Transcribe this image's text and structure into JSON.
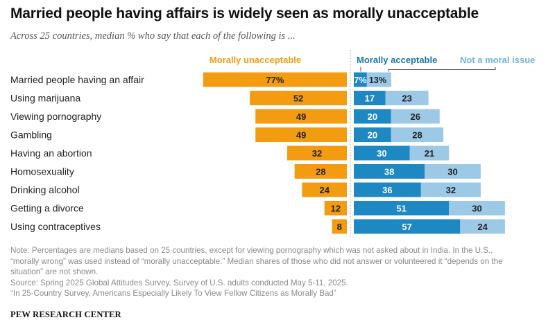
{
  "title": "Married people having affairs is widely seen as morally unacceptable",
  "subtitle": "Across 25 countries, median % who say that each of the following is ...",
  "colors": {
    "unacceptable": "#F39C12",
    "acceptable": "#1E88C2",
    "not_moral": "#9CC9E6"
  },
  "chart_data": {
    "type": "bar",
    "stacked": "diverging",
    "categories": [
      "Married people having an affair",
      "Using marijuana",
      "Viewing pornography",
      "Gambling",
      "Having an abortion",
      "Homosexuality",
      "Drinking alcohol",
      "Getting a divorce",
      "Using contraceptives"
    ],
    "series": [
      {
        "name": "Morally unacceptable",
        "values": [
          77,
          52,
          49,
          49,
          32,
          28,
          24,
          12,
          8
        ],
        "labels": [
          "77%",
          "52",
          "49",
          "49",
          "32",
          "28",
          "24",
          "12",
          "8"
        ]
      },
      {
        "name": "Morally acceptable",
        "values": [
          7,
          17,
          20,
          20,
          30,
          38,
          36,
          51,
          57
        ],
        "labels": [
          "7%",
          "17",
          "20",
          "20",
          "30",
          "38",
          "36",
          "51",
          "57"
        ]
      },
      {
        "name": "Not a moral issue",
        "values": [
          13,
          23,
          26,
          28,
          21,
          30,
          32,
          30,
          24
        ],
        "labels": [
          "13%",
          "23",
          "26",
          "28",
          "21",
          "30",
          "32",
          "30",
          "24"
        ]
      }
    ],
    "legend": [
      "Morally unacceptable",
      "Morally acceptable",
      "Not a moral issue"
    ],
    "legend_placement": "top"
  },
  "notes": [
    "Note: Percentages are medians based on 25 countries, except for viewing pornography which was not asked about in India. In the U.S.,",
    "“morally wrong” was used instead of “morally unacceptable.” Median shares of those who did not answer or volunteered it “depends on the",
    "situation” are not shown.",
    "Source: Spring 2025 Global Attitudes Survey. Survey of U.S. adults conducted May 5-11, 2025.",
    "“In 25-Country Survey, Americans Especially Likely To View Fellow Citizens as Morally Bad”"
  ],
  "brand": "PEW RESEARCH CENTER"
}
